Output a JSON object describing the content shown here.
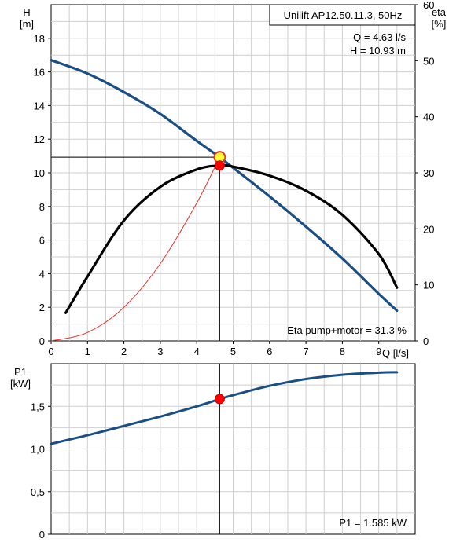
{
  "chart_data": [
    {
      "type": "line",
      "title": "Unilift AP12.50.11.3, 50Hz",
      "ylabel": "H",
      "ylabel_unit": "[m]",
      "y2label": "eta",
      "y2label_unit": "[%]",
      "xlabel": "Q [l/s]",
      "xlim": [
        0,
        10
      ],
      "ylim": [
        0,
        20
      ],
      "y2lim": [
        0,
        60
      ],
      "grid": true,
      "x_ticks": [
        "0",
        "1",
        "2",
        "3",
        "4",
        "5",
        "6",
        "7",
        "8",
        "9"
      ],
      "y_ticks": [
        "0",
        "2",
        "4",
        "6",
        "8",
        "10",
        "12",
        "14",
        "16",
        "18"
      ],
      "y2_ticks": [
        "0",
        "10",
        "20",
        "30",
        "40",
        "50",
        "60"
      ],
      "operating_point": {
        "q": 4.63,
        "h": 10.93,
        "eta": 31.3
      },
      "readout": {
        "q": "Q = 4.63 l/s",
        "h": "H = 10.93 m",
        "eta": "Eta pump+motor = 31.3 %"
      },
      "series": [
        {
          "key": "head",
          "color": "#1a4f86",
          "axis": "left",
          "x": [
            0,
            1,
            2,
            3,
            4,
            4.63,
            5,
            6,
            7,
            8,
            9,
            9.5
          ],
          "y": [
            16.7,
            15.9,
            14.8,
            13.5,
            11.9,
            10.93,
            10.3,
            8.6,
            6.8,
            4.9,
            2.8,
            1.8
          ]
        },
        {
          "key": "system",
          "color": "#e8332a",
          "axis": "left",
          "x": [
            0,
            1,
            2,
            3,
            4,
            4.63
          ],
          "y": [
            0,
            0.5,
            2.0,
            4.6,
            8.2,
            10.93
          ]
        },
        {
          "key": "eta",
          "color": "#000000",
          "axis": "right",
          "x": [
            0.4,
            1,
            2,
            3,
            4,
            4.63,
            5,
            6,
            7,
            8,
            9,
            9.5
          ],
          "y": [
            5,
            11.5,
            21.5,
            27.5,
            30.6,
            31.3,
            31.1,
            29.5,
            26.8,
            22.5,
            15.5,
            9.5
          ]
        }
      ]
    },
    {
      "type": "line",
      "ylabel": "P1",
      "ylabel_unit": "[kW]",
      "xlim": [
        0,
        10
      ],
      "ylim": [
        0,
        2
      ],
      "grid": true,
      "y_ticks": [
        "0",
        "0,5",
        "1,0",
        "1,5"
      ],
      "operating_point": {
        "q": 4.63,
        "p": 1.585
      },
      "readout": "P1 = 1.585 kW",
      "series": [
        {
          "key": "power",
          "color": "#1a4f86",
          "x": [
            0,
            1,
            2,
            3,
            4,
            4.63,
            5,
            6,
            7,
            8,
            9,
            9.5
          ],
          "y": [
            1.06,
            1.16,
            1.27,
            1.38,
            1.5,
            1.585,
            1.63,
            1.74,
            1.82,
            1.87,
            1.895,
            1.9
          ]
        }
      ]
    }
  ],
  "colors": {
    "head": "#1a4f86",
    "system": "#e8332a",
    "eta": "#000000",
    "power": "#1a4f86",
    "op_fill": "#ffff33",
    "op_stroke": "#e8332a",
    "dot": "#ff0000",
    "grid": "#cfcfcf"
  }
}
